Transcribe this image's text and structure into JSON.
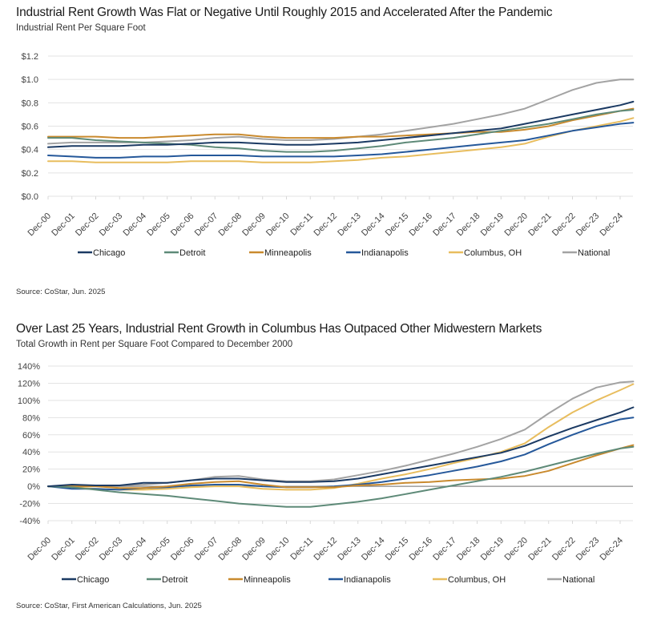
{
  "chart_data": [
    {
      "type": "line",
      "title": "Industrial Rent Growth Was Flat or Negative Until Roughly 2015 and Accelerated After the Pandemic",
      "subtitle": "Industrial Rent Per Square Foot",
      "source": "Source: CoStar, Jun. 2025",
      "xlabel": "",
      "ylabel": "",
      "ylim": [
        0,
        1.2
      ],
      "yticks": [
        0,
        0.2,
        0.4,
        0.6,
        0.8,
        1.0,
        1.2
      ],
      "ytick_labels": [
        "$0.0",
        "$0.2",
        "$0.4",
        "$0.6",
        "$0.8",
        "$1.0",
        "$1.2"
      ],
      "grid": true,
      "legend": "bottom",
      "x": [
        2000,
        2001,
        2002,
        2003,
        2004,
        2005,
        2006,
        2007,
        2008,
        2009,
        2010,
        2011,
        2012,
        2013,
        2014,
        2015,
        2016,
        2017,
        2018,
        2019,
        2020,
        2021,
        2022,
        2023,
        2024,
        2025
      ],
      "categories": [
        "Dec-00",
        "Dec-01",
        "Dec-02",
        "Dec-03",
        "Dec-04",
        "Dec-05",
        "Dec-06",
        "Dec-07",
        "Dec-08",
        "Dec-09",
        "Dec-10",
        "Dec-11",
        "Dec-12",
        "Dec-13",
        "Dec-14",
        "Dec-15",
        "Dec-16",
        "Dec-17",
        "Dec-18",
        "Dec-19",
        "Dec-20",
        "Dec-21",
        "Dec-22",
        "Dec-23",
        "Dec-24"
      ],
      "series": [
        {
          "name": "Chicago",
          "color": "#1b3a63",
          "values": [
            0.42,
            0.43,
            0.43,
            0.43,
            0.44,
            0.44,
            0.45,
            0.46,
            0.46,
            0.45,
            0.44,
            0.44,
            0.45,
            0.46,
            0.48,
            0.5,
            0.52,
            0.54,
            0.56,
            0.58,
            0.62,
            0.66,
            0.7,
            0.74,
            0.78,
            0.81
          ]
        },
        {
          "name": "Detroit",
          "color": "#5e8a78",
          "values": [
            0.5,
            0.5,
            0.48,
            0.47,
            0.46,
            0.45,
            0.44,
            0.42,
            0.41,
            0.39,
            0.38,
            0.38,
            0.39,
            0.41,
            0.43,
            0.46,
            0.48,
            0.5,
            0.53,
            0.56,
            0.59,
            0.62,
            0.66,
            0.7,
            0.73,
            0.74
          ]
        },
        {
          "name": "Minneapolis",
          "color": "#c98a2e",
          "values": [
            0.51,
            0.51,
            0.51,
            0.5,
            0.5,
            0.51,
            0.52,
            0.53,
            0.53,
            0.51,
            0.5,
            0.5,
            0.5,
            0.51,
            0.51,
            0.52,
            0.53,
            0.54,
            0.55,
            0.55,
            0.57,
            0.6,
            0.65,
            0.69,
            0.73,
            0.75
          ]
        },
        {
          "name": "Indianapolis",
          "color": "#25589a",
          "values": [
            0.35,
            0.34,
            0.33,
            0.33,
            0.34,
            0.34,
            0.35,
            0.35,
            0.35,
            0.34,
            0.34,
            0.34,
            0.34,
            0.35,
            0.36,
            0.38,
            0.4,
            0.42,
            0.44,
            0.46,
            0.48,
            0.52,
            0.56,
            0.59,
            0.62,
            0.63
          ]
        },
        {
          "name": "Columbus, OH",
          "color": "#e8bd5e",
          "values": [
            0.3,
            0.3,
            0.29,
            0.29,
            0.29,
            0.29,
            0.3,
            0.3,
            0.3,
            0.29,
            0.29,
            0.29,
            0.3,
            0.31,
            0.33,
            0.34,
            0.36,
            0.38,
            0.4,
            0.42,
            0.45,
            0.51,
            0.56,
            0.6,
            0.64,
            0.67
          ]
        },
        {
          "name": "National",
          "color": "#a3a3a3",
          "values": [
            0.45,
            0.46,
            0.46,
            0.46,
            0.46,
            0.47,
            0.48,
            0.5,
            0.51,
            0.49,
            0.48,
            0.48,
            0.49,
            0.51,
            0.53,
            0.56,
            0.59,
            0.62,
            0.66,
            0.7,
            0.75,
            0.83,
            0.91,
            0.97,
            1.0,
            1.0
          ]
        }
      ]
    },
    {
      "type": "line",
      "title": "Over Last 25 Years, Industrial Rent Growth in Columbus Has Outpaced Other Midwestern Markets",
      "subtitle": "Total Growth in Rent per Square Foot Compared to December 2000",
      "source": "Source: CoStar, First American Calculations, Jun. 2025",
      "xlabel": "",
      "ylabel": "",
      "ylim": [
        -40,
        140
      ],
      "yticks": [
        -40,
        -20,
        0,
        20,
        40,
        60,
        80,
        100,
        120,
        140
      ],
      "ytick_labels": [
        "-40%",
        "-20%",
        "0%",
        "20%",
        "40%",
        "60%",
        "80%",
        "100%",
        "120%",
        "140%"
      ],
      "grid": true,
      "legend": "bottom",
      "x": [
        2000,
        2001,
        2002,
        2003,
        2004,
        2005,
        2006,
        2007,
        2008,
        2009,
        2010,
        2011,
        2012,
        2013,
        2014,
        2015,
        2016,
        2017,
        2018,
        2019,
        2020,
        2021,
        2022,
        2023,
        2024,
        2025
      ],
      "categories": [
        "Dec-00",
        "Dec-01",
        "Dec-02",
        "Dec-03",
        "Dec-04",
        "Dec-05",
        "Dec-06",
        "Dec-07",
        "Dec-08",
        "Dec-09",
        "Dec-10",
        "Dec-11",
        "Dec-12",
        "Dec-13",
        "Dec-14",
        "Dec-15",
        "Dec-16",
        "Dec-17",
        "Dec-18",
        "Dec-19",
        "Dec-20",
        "Dec-21",
        "Dec-22",
        "Dec-23",
        "Dec-24"
      ],
      "series": [
        {
          "name": "Chicago",
          "color": "#1b3a63",
          "values": [
            0,
            2,
            1,
            1,
            4,
            4,
            7,
            9,
            9,
            7,
            5,
            5,
            6,
            9,
            14,
            19,
            24,
            29,
            34,
            39,
            47,
            58,
            68,
            77,
            86,
            92
          ]
        },
        {
          "name": "Detroit",
          "color": "#5e8a78",
          "values": [
            0,
            -1,
            -4,
            -7,
            -9,
            -11,
            -14,
            -17,
            -20,
            -22,
            -24,
            -24,
            -21,
            -18,
            -14,
            -9,
            -4,
            1,
            6,
            11,
            17,
            24,
            31,
            38,
            44,
            46
          ]
        },
        {
          "name": "Minneapolis",
          "color": "#c98a2e",
          "values": [
            0,
            0,
            0,
            -2,
            -2,
            0,
            3,
            5,
            6,
            2,
            -1,
            -1,
            -1,
            1,
            2,
            4,
            5,
            7,
            8,
            9,
            12,
            18,
            27,
            36,
            44,
            48
          ]
        },
        {
          "name": "Indianapolis",
          "color": "#25589a",
          "values": [
            0,
            -3,
            -3,
            -4,
            -2,
            -1,
            1,
            2,
            2,
            0,
            -1,
            -1,
            0,
            2,
            5,
            9,
            13,
            18,
            23,
            29,
            37,
            49,
            60,
            70,
            78,
            80
          ]
        },
        {
          "name": "Columbus, OH",
          "color": "#e8bd5e",
          "values": [
            0,
            -1,
            -3,
            -4,
            -4,
            -3,
            -1,
            0,
            0,
            -3,
            -4,
            -4,
            -2,
            3,
            9,
            14,
            20,
            27,
            33,
            40,
            50,
            69,
            86,
            100,
            112,
            119
          ]
        },
        {
          "name": "National",
          "color": "#a3a3a3",
          "values": [
            0,
            1,
            1,
            1,
            2,
            4,
            7,
            11,
            12,
            8,
            6,
            6,
            8,
            13,
            18,
            24,
            31,
            38,
            46,
            55,
            66,
            85,
            102,
            115,
            121,
            122
          ]
        }
      ]
    }
  ]
}
